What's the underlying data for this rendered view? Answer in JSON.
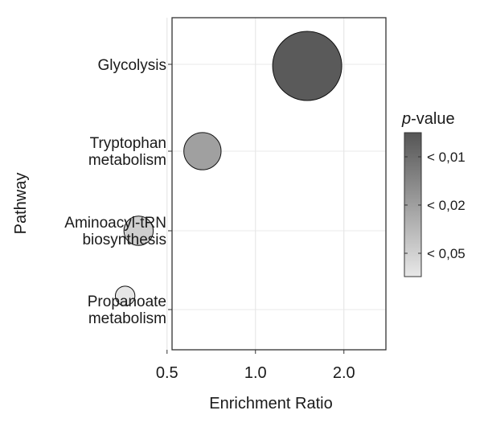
{
  "chart_data": {
    "type": "scatter",
    "subtype": "bubble",
    "xlabel": "Enrichment Ratio",
    "ylabel": "Pathway",
    "x_scale": "log2",
    "xlim": [
      0.52,
      2.78
    ],
    "xticks": [
      0.5,
      1.0,
      2.0
    ],
    "xtick_labels": [
      "0.5",
      "1.0",
      "2.0"
    ],
    "grid": true,
    "categories": [
      [
        "Glycolysis"
      ],
      [
        "Tryptophan",
        "metabolism"
      ],
      [
        "Aminoacyl-tRN",
        "biosynthesis"
      ],
      [
        "Propanoate",
        "metabolism"
      ]
    ],
    "points": [
      {
        "pathway": "Glycolysis",
        "x": 1.5,
        "relative_size": 1.0,
        "color": "#5a5a5a"
      },
      {
        "pathway": "Tryptophan metabolism",
        "x": 0.66,
        "relative_size": 0.29,
        "color": "#a0a0a0"
      },
      {
        "pathway": "Aminoacyl-tRN biosynthesis",
        "x": 0.4,
        "relative_size": 0.18,
        "color": "#cfcfcf"
      },
      {
        "pathway": "Propanoate metabolism",
        "x": 0.36,
        "relative_size": 0.08,
        "color": "#e6e6e6"
      }
    ],
    "legend": {
      "title_italic": "p",
      "title_rest": "-value",
      "placement": "right",
      "labels": [
        "< 0,01",
        "< 0,02",
        "< 0,05"
      ],
      "gradient": [
        "#555555",
        "#e8e8e8"
      ]
    }
  }
}
